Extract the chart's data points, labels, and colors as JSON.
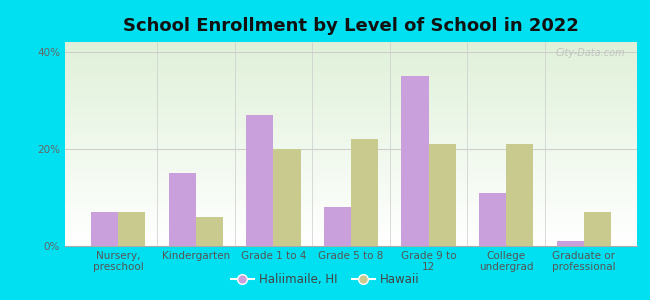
{
  "title": "School Enrollment by Level of School in 2022",
  "categories": [
    "Nursery,\npreschool",
    "Kindergarten",
    "Grade 1 to 4",
    "Grade 5 to 8",
    "Grade 9 to\n12",
    "College\nundergrad",
    "Graduate or\nprofessional"
  ],
  "haliimaile": [
    7,
    15,
    27,
    8,
    35,
    11,
    1
  ],
  "hawaii": [
    7,
    6,
    20,
    22,
    21,
    21,
    7
  ],
  "haliimaile_color": "#c9a0dc",
  "hawaii_color": "#c8ca8e",
  "haliimaile_label": "Haliimaile, HI",
  "hawaii_label": "Hawaii",
  "ylim": [
    0,
    42
  ],
  "yticks": [
    0,
    20,
    40
  ],
  "yticklabels": [
    "0%",
    "20%",
    "40%"
  ],
  "background_outer": "#00e0f0",
  "background_inner_top": "#dff0d8",
  "title_fontsize": 13,
  "tick_fontsize": 7.5,
  "legend_fontsize": 8.5,
  "bar_width": 0.35,
  "watermark": "City-Data.com"
}
